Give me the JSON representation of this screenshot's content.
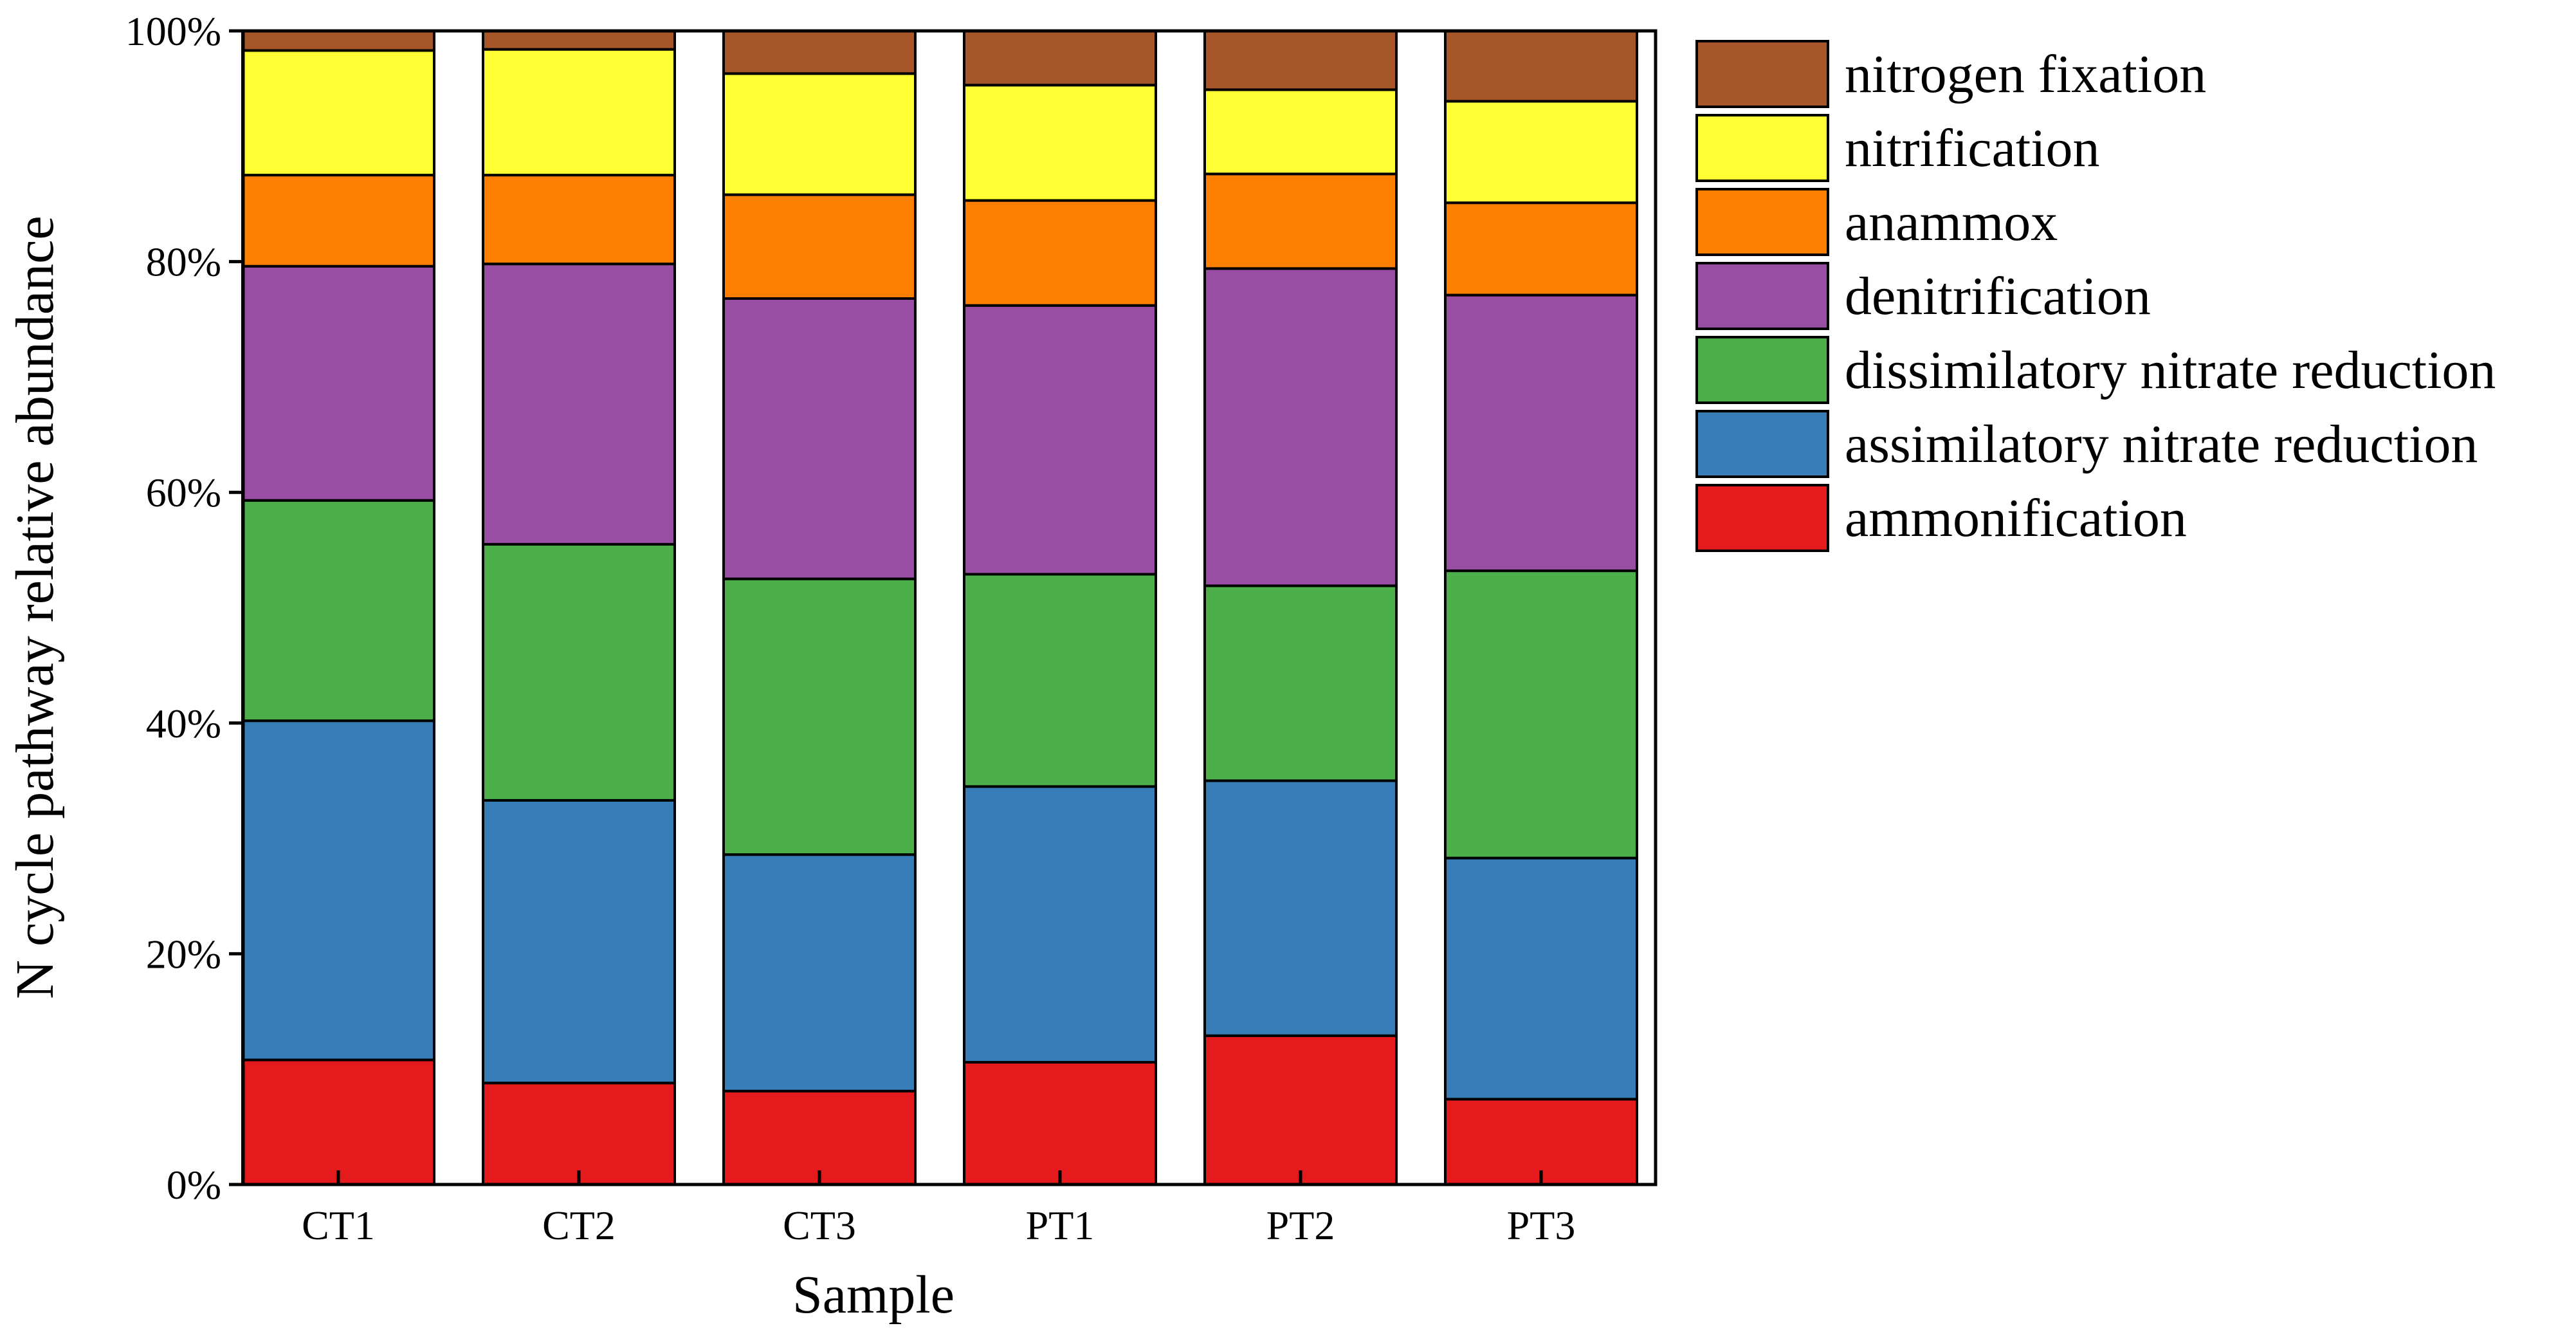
{
  "chart_data": {
    "type": "bar",
    "stacked": true,
    "xlabel": "Sample",
    "ylabel": "N cycle pathway relative abundance",
    "ylim": [
      0,
      100
    ],
    "y_ticks": [
      "0%",
      "20%",
      "40%",
      "60%",
      "80%",
      "100%"
    ],
    "grid": false,
    "legend_position": "right",
    "categories": [
      "CT1",
      "CT2",
      "CT3",
      "PT1",
      "PT2",
      "PT3"
    ],
    "series": [
      {
        "name": "ammonification",
        "color": "#e41a1c",
        "values": [
          10.8,
          8.8,
          8.1,
          10.6,
          12.9,
          7.4
        ]
      },
      {
        "name": "assimilatory nitrate reduction",
        "color": "#377eb8",
        "values": [
          29.4,
          24.5,
          20.5,
          23.9,
          22.1,
          20.9
        ]
      },
      {
        "name": "dissimilatory nitrate reduction",
        "color": "#4daf4a",
        "values": [
          19.1,
          22.2,
          23.9,
          18.4,
          16.9,
          24.9
        ]
      },
      {
        "name": "denitrification",
        "color": "#984ea3",
        "values": [
          20.3,
          24.3,
          24.3,
          23.3,
          27.5,
          23.9
        ]
      },
      {
        "name": "anammox",
        "color": "#ff7f00",
        "values": [
          7.9,
          7.7,
          9.0,
          9.1,
          8.2,
          8.0
        ]
      },
      {
        "name": "nitrification",
        "color": "#ffff33",
        "values": [
          10.8,
          10.9,
          10.5,
          10.0,
          7.3,
          8.8
        ]
      },
      {
        "name": "nitrogen fixation",
        "color": "#a65628",
        "values": [
          1.7,
          1.6,
          3.7,
          4.7,
          5.1,
          6.1
        ]
      }
    ]
  }
}
